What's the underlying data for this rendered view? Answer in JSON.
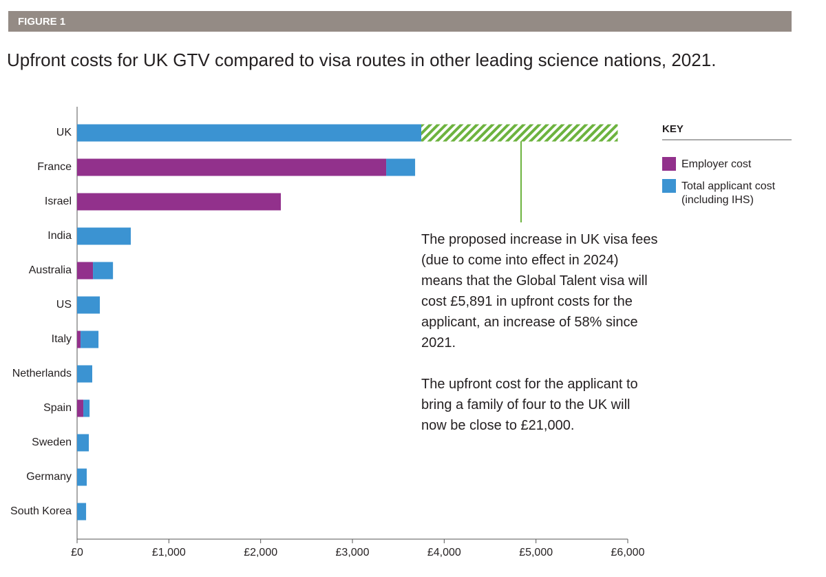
{
  "chart_data": {
    "type": "stacked-barh",
    "figure_label": "FIGURE 1",
    "title": "Upfront costs for UK GTV compared to visa routes in other leading science nations, 2021.",
    "categories": [
      "UK",
      "France",
      "Israel",
      "India",
      "Australia",
      "US",
      "Italy",
      "Netherlands",
      "Spain",
      "Sweden",
      "Germany",
      "South Korea"
    ],
    "series": [
      {
        "name": "Employer cost",
        "color": "#92318c",
        "values": [
          null,
          3368,
          2220,
          null,
          173,
          null,
          38,
          null,
          68,
          null,
          null,
          null
        ]
      },
      {
        "name": "Total applicant cost (including IHS)",
        "color": "#3b93d2",
        "values": [
          3750,
          315,
          null,
          585,
          218,
          248,
          195,
          165,
          68,
          128,
          105,
          98
        ]
      },
      {
        "color": "#6db33f",
        "pattern": "hatch",
        "values": [
          2141,
          null,
          null,
          null,
          null,
          null,
          null,
          null,
          null,
          null,
          null,
          null
        ]
      }
    ],
    "xlim": [
      0,
      6000
    ],
    "xticks": [
      {
        "value": 0,
        "label": "£0"
      },
      {
        "value": 1000,
        "label": "£1,000"
      },
      {
        "value": 2000,
        "label": "£2,000"
      },
      {
        "value": 3000,
        "label": "£3,000"
      },
      {
        "value": 4000,
        "label": "£4,000"
      },
      {
        "value": 5000,
        "label": "£5,000"
      },
      {
        "value": 6000,
        "label": "£6,000"
      }
    ],
    "legend_title": "KEY",
    "annotations": [
      "The proposed increase in UK visa fees (due to come into effect in 2024) means that the Global Talent visa will cost £5,891 in upfront costs for the applicant, an increase of 58% since 2021.",
      "The upfront cost for the applicant to bring a family of four to the UK will now be close to £21,000."
    ]
  }
}
